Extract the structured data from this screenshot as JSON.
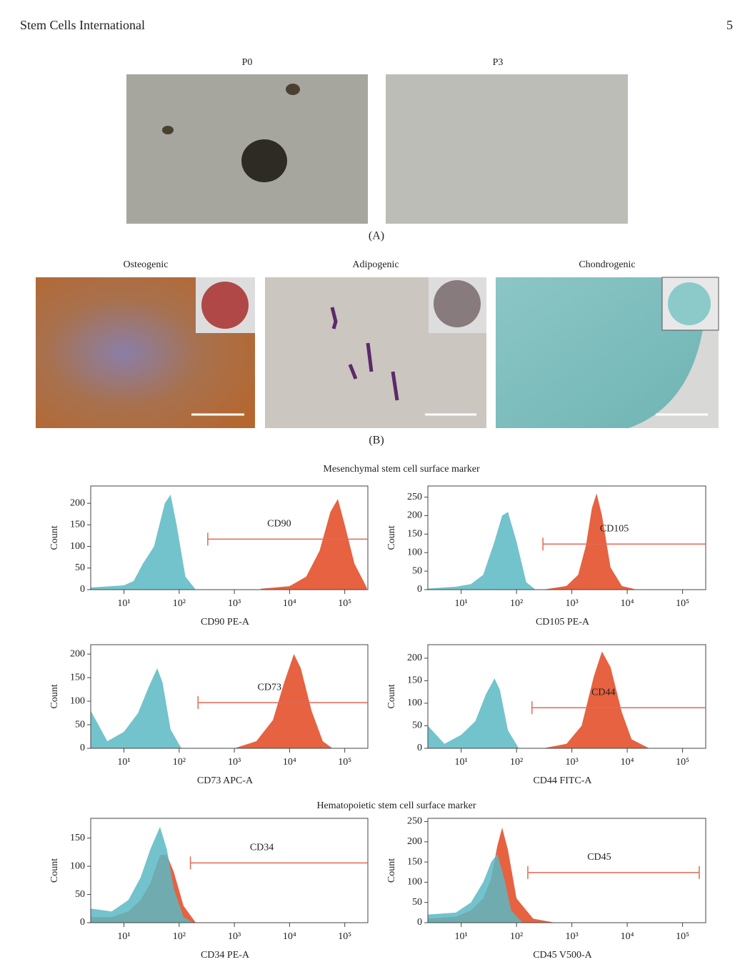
{
  "header": {
    "journal": "Stem Cells International",
    "page": "5"
  },
  "figure_a": {
    "labels": [
      "P0",
      "P3"
    ],
    "caption": "(A)"
  },
  "figure_b": {
    "labels": [
      "Osteogenic",
      "Adipogenic",
      "Chondrogenic"
    ],
    "caption": "(B)"
  },
  "section_titles": [
    "Mesenchymal stem cell surface marker",
    "Hematopoietic stem cell surface marker"
  ],
  "chart_data": [
    {
      "type": "area",
      "x_scale": "log",
      "xlabel": "CD90 PE-A",
      "ylabel": "Count",
      "xlim": [
        2.5,
        262144
      ],
      "ylim": [
        0,
        240
      ],
      "xticks": [
        {
          "value": 10,
          "label": "10¹"
        },
        {
          "value": 100,
          "label": "10²"
        },
        {
          "value": 1000,
          "label": "10³"
        },
        {
          "value": 10000,
          "label": "10⁴"
        },
        {
          "value": 100000,
          "label": "10⁵"
        }
      ],
      "yticks": [
        0,
        50,
        100,
        150,
        200
      ],
      "series": [
        {
          "color": "#5bb8c4",
          "x": [
            2.5,
            10,
            15,
            22,
            35,
            55,
            70,
            90,
            130,
            200
          ],
          "values": [
            5,
            10,
            20,
            60,
            100,
            200,
            220,
            150,
            30,
            0
          ]
        },
        {
          "color": "#e2461f",
          "x": [
            3000,
            10000,
            20000,
            35000,
            55000,
            75000,
            100000,
            150000,
            250000
          ],
          "values": [
            2,
            8,
            30,
            90,
            180,
            210,
            150,
            60,
            5
          ]
        }
      ],
      "gate": {
        "label": "CD90",
        "x": [
          330,
          262144
        ],
        "y": 117
      }
    },
    {
      "type": "area",
      "x_scale": "log",
      "xlabel": "CD105 PE-A",
      "ylabel": "Count",
      "xlim": [
        2.5,
        262144
      ],
      "ylim": [
        0,
        280
      ],
      "xticks": [
        {
          "value": 10,
          "label": "10¹"
        },
        {
          "value": 100,
          "label": "10²"
        },
        {
          "value": 1000,
          "label": "10³"
        },
        {
          "value": 10000,
          "label": "10⁴"
        },
        {
          "value": 100000,
          "label": "10⁵"
        }
      ],
      "yticks": [
        0,
        50,
        100,
        150,
        200,
        250
      ],
      "series": [
        {
          "color": "#5bb8c4",
          "x": [
            2.5,
            8,
            15,
            25,
            40,
            55,
            70,
            100,
            150,
            220
          ],
          "values": [
            3,
            8,
            15,
            40,
            130,
            200,
            210,
            130,
            20,
            0
          ]
        },
        {
          "color": "#e2461f",
          "x": [
            300,
            800,
            1300,
            1800,
            2300,
            2800,
            3500,
            5000,
            8000,
            15000
          ],
          "values": [
            0,
            10,
            40,
            120,
            220,
            260,
            200,
            60,
            10,
            0
          ]
        }
      ],
      "gate": {
        "label": "CD105",
        "x": [
          300,
          262144
        ],
        "y": 123
      }
    },
    {
      "type": "area",
      "x_scale": "log",
      "xlabel": "CD73 APC-A",
      "ylabel": "Count",
      "xlim": [
        2.5,
        262144
      ],
      "ylim": [
        0,
        220
      ],
      "xticks": [
        {
          "value": 10,
          "label": "10¹"
        },
        {
          "value": 100,
          "label": "10²"
        },
        {
          "value": 1000,
          "label": "10³"
        },
        {
          "value": 10000,
          "label": "10⁴"
        },
        {
          "value": 100000,
          "label": "10⁵"
        }
      ],
      "yticks": [
        0,
        50,
        100,
        150,
        200
      ],
      "series": [
        {
          "color": "#5bb8c4",
          "x": [
            2.5,
            5,
            10,
            18,
            28,
            40,
            50,
            70,
            110
          ],
          "values": [
            80,
            15,
            35,
            75,
            130,
            170,
            140,
            40,
            0
          ]
        },
        {
          "color": "#e2461f",
          "x": [
            1000,
            2500,
            5000,
            8000,
            12000,
            16000,
            25000,
            40000,
            60000
          ],
          "values": [
            0,
            15,
            60,
            140,
            200,
            170,
            80,
            15,
            0
          ]
        }
      ],
      "gate": {
        "label": "CD73",
        "x": [
          220,
          262144
        ],
        "y": 97
      }
    },
    {
      "type": "area",
      "x_scale": "log",
      "xlabel": "CD44 FITC-A",
      "ylabel": "Count",
      "xlim": [
        2.5,
        262144
      ],
      "ylim": [
        0,
        230
      ],
      "xticks": [
        {
          "value": 10,
          "label": "10¹"
        },
        {
          "value": 100,
          "label": "10²"
        },
        {
          "value": 1000,
          "label": "10³"
        },
        {
          "value": 10000,
          "label": "10⁴"
        },
        {
          "value": 100000,
          "label": "10⁵"
        }
      ],
      "yticks": [
        0,
        50,
        100,
        150,
        200
      ],
      "series": [
        {
          "color": "#5bb8c4",
          "x": [
            2.5,
            5,
            10,
            18,
            28,
            40,
            50,
            70,
            110
          ],
          "values": [
            50,
            10,
            30,
            60,
            120,
            155,
            130,
            40,
            0
          ]
        },
        {
          "color": "#e2461f",
          "x": [
            300,
            800,
            1500,
            2500,
            3500,
            5000,
            8000,
            12000,
            25000
          ],
          "values": [
            0,
            10,
            50,
            160,
            215,
            180,
            80,
            20,
            0
          ]
        }
      ],
      "gate": {
        "label": "CD44",
        "x": [
          190,
          262144
        ],
        "y": 90
      }
    },
    {
      "type": "area",
      "x_scale": "log",
      "xlabel": "CD34 PE-A",
      "ylabel": "Count",
      "xlim": [
        2.5,
        262144
      ],
      "ylim": [
        0,
        185
      ],
      "xticks": [
        {
          "value": 10,
          "label": "10¹"
        },
        {
          "value": 100,
          "label": "10²"
        },
        {
          "value": 1000,
          "label": "10³"
        },
        {
          "value": 10000,
          "label": "10⁴"
        },
        {
          "value": 100000,
          "label": "10⁵"
        }
      ],
      "yticks": [
        0,
        50,
        100,
        150
      ],
      "series": [
        {
          "color": "#e2461f",
          "x": [
            2.5,
            6,
            12,
            20,
            30,
            45,
            60,
            80,
            120,
            200
          ],
          "values": [
            10,
            10,
            20,
            40,
            70,
            120,
            120,
            90,
            30,
            0
          ]
        },
        {
          "color": "#5bb8c4",
          "x": [
            2.5,
            6,
            12,
            20,
            30,
            45,
            60,
            80,
            120,
            180
          ],
          "values": [
            25,
            20,
            40,
            80,
            130,
            170,
            130,
            60,
            10,
            0
          ]
        }
      ],
      "gate": {
        "label": "CD34",
        "x": [
          160,
          262144
        ],
        "y": 106
      }
    },
    {
      "type": "area",
      "x_scale": "log",
      "xlabel": "CD45 V500-A",
      "ylabel": "Count",
      "xlim": [
        2.5,
        262144
      ],
      "ylim": [
        0,
        258
      ],
      "xticks": [
        {
          "value": 10,
          "label": "10¹"
        },
        {
          "value": 100,
          "label": "10²"
        },
        {
          "value": 1000,
          "label": "10³"
        },
        {
          "value": 10000,
          "label": "10⁴"
        },
        {
          "value": 100000,
          "label": "10⁵"
        }
      ],
      "yticks": [
        0,
        50,
        100,
        150,
        200,
        250
      ],
      "series": [
        {
          "color": "#e2461f",
          "x": [
            2.5,
            8,
            15,
            25,
            35,
            45,
            55,
            70,
            100,
            200,
            500
          ],
          "values": [
            10,
            15,
            30,
            60,
            110,
            190,
            235,
            180,
            60,
            10,
            0
          ]
        },
        {
          "color": "#5bb8c4",
          "x": [
            2.5,
            8,
            15,
            25,
            35,
            45,
            60,
            80,
            130
          ],
          "values": [
            20,
            25,
            50,
            100,
            150,
            170,
            110,
            30,
            0
          ]
        }
      ],
      "gate": {
        "label": "CD45",
        "x": [
          160,
          200000
        ],
        "y": 124
      }
    }
  ]
}
